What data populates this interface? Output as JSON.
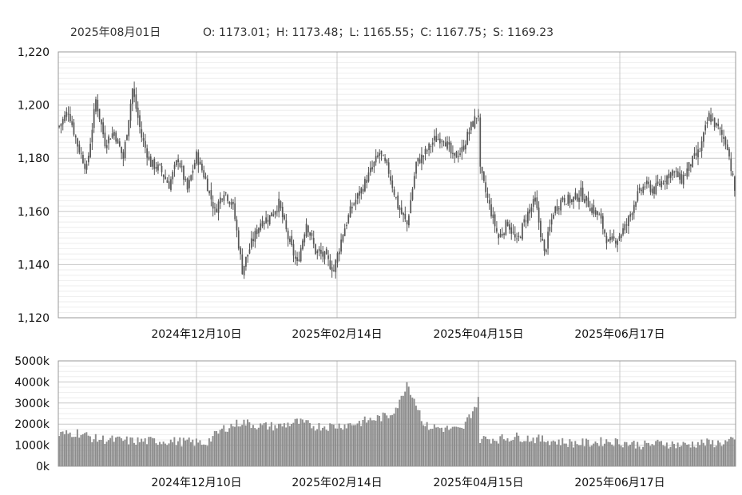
{
  "info_bar": {
    "date": "2025年08月01日",
    "ohlc": "O: 1173.01；H: 1173.48；L: 1165.55；C: 1167.75；S: 1169.23"
  },
  "colors": {
    "candle": "#555555",
    "volume_bar": "#8c8c8c",
    "grid_major": "#c8c8c8",
    "grid_minor": "#eeeeee",
    "axis": "#999999"
  },
  "chart_data": [
    {
      "type": "candlestick",
      "title": "",
      "xlabel": "",
      "ylabel": "",
      "ylim": [
        1120,
        1220
      ],
      "yticks": [
        "1,220",
        "1,200",
        "1,180",
        "1,160",
        "1,140",
        "1,120"
      ],
      "xticks": [
        "2024年12月10日",
        "2025年02月14日",
        "2025年04月15日",
        "2025年06月17日"
      ],
      "grid": true,
      "last_bar": {
        "date": "2025年08月01日",
        "open": 1173.01,
        "high": 1173.48,
        "low": 1165.55,
        "close": 1167.75,
        "settle": 1169.23
      },
      "close_path": [
        [
          0,
          1192
        ],
        [
          5,
          1198
        ],
        [
          10,
          1185
        ],
        [
          15,
          1176
        ],
        [
          20,
          1202
        ],
        [
          25,
          1186
        ],
        [
          30,
          1190
        ],
        [
          35,
          1180
        ],
        [
          40,
          1206
        ],
        [
          45,
          1188
        ],
        [
          50,
          1178
        ],
        [
          55,
          1176
        ],
        [
          60,
          1170
        ],
        [
          65,
          1180
        ],
        [
          70,
          1168
        ],
        [
          75,
          1181
        ],
        [
          80,
          1172
        ],
        [
          85,
          1160
        ],
        [
          90,
          1168
        ],
        [
          95,
          1162
        ],
        [
          100,
          1138
        ],
        [
          105,
          1148
        ],
        [
          110,
          1156
        ],
        [
          115,
          1158
        ],
        [
          120,
          1163
        ],
        [
          125,
          1150
        ],
        [
          130,
          1140
        ],
        [
          135,
          1156
        ],
        [
          140,
          1145
        ],
        [
          145,
          1143
        ],
        [
          150,
          1138
        ],
        [
          155,
          1152
        ],
        [
          160,
          1162
        ],
        [
          165,
          1168
        ],
        [
          170,
          1175
        ],
        [
          175,
          1182
        ],
        [
          180,
          1175
        ],
        [
          185,
          1162
        ],
        [
          190,
          1155
        ],
        [
          195,
          1178
        ],
        [
          200,
          1182
        ],
        [
          205,
          1187
        ],
        [
          210,
          1188
        ],
        [
          215,
          1180
        ],
        [
          220,
          1183
        ],
        [
          225,
          1192
        ],
        [
          229,
          1197
        ],
        [
          230,
          1175
        ],
        [
          235,
          1162
        ],
        [
          240,
          1150
        ],
        [
          245,
          1156
        ],
        [
          250,
          1148
        ],
        [
          255,
          1158
        ],
        [
          260,
          1164
        ],
        [
          265,
          1144
        ],
        [
          270,
          1160
        ],
        [
          275,
          1165
        ],
        [
          280,
          1164
        ],
        [
          285,
          1167
        ],
        [
          290,
          1162
        ],
        [
          295,
          1158
        ],
        [
          300,
          1148
        ],
        [
          305,
          1150
        ],
        [
          310,
          1155
        ],
        [
          315,
          1165
        ],
        [
          320,
          1170
        ],
        [
          325,
          1168
        ],
        [
          330,
          1172
        ],
        [
          335,
          1175
        ],
        [
          340,
          1172
        ],
        [
          345,
          1178
        ],
        [
          350,
          1183
        ],
        [
          355,
          1196
        ],
        [
          360,
          1191
        ],
        [
          365,
          1185
        ],
        [
          369,
          1167.75
        ]
      ],
      "volume": {
        "ylim": [
          0,
          5000
        ],
        "yticks": [
          "5000k",
          "4000k",
          "3000k",
          "2000k",
          "1000k",
          "0k"
        ],
        "path": [
          [
            0,
            1500
          ],
          [
            10,
            1600
          ],
          [
            20,
            1300
          ],
          [
            40,
            1200
          ],
          [
            60,
            1200
          ],
          [
            80,
            1100
          ],
          [
            90,
            1800
          ],
          [
            100,
            2100
          ],
          [
            110,
            1900
          ],
          [
            120,
            1900
          ],
          [
            130,
            2100
          ],
          [
            140,
            1900
          ],
          [
            150,
            1900
          ],
          [
            160,
            2000
          ],
          [
            170,
            2200
          ],
          [
            180,
            2400
          ],
          [
            186,
            3000
          ],
          [
            190,
            4000
          ],
          [
            195,
            3000
          ],
          [
            200,
            1900
          ],
          [
            210,
            1800
          ],
          [
            220,
            1700
          ],
          [
            225,
            2500
          ],
          [
            229,
            3100
          ],
          [
            230,
            1300
          ],
          [
            240,
            1300
          ],
          [
            250,
            1400
          ],
          [
            260,
            1300
          ],
          [
            270,
            1200
          ],
          [
            280,
            1100
          ],
          [
            290,
            1100
          ],
          [
            300,
            1200
          ],
          [
            310,
            1100
          ],
          [
            320,
            1000
          ],
          [
            330,
            1100
          ],
          [
            340,
            1000
          ],
          [
            350,
            1100
          ],
          [
            360,
            1100
          ],
          [
            369,
            1200
          ]
        ]
      }
    }
  ]
}
